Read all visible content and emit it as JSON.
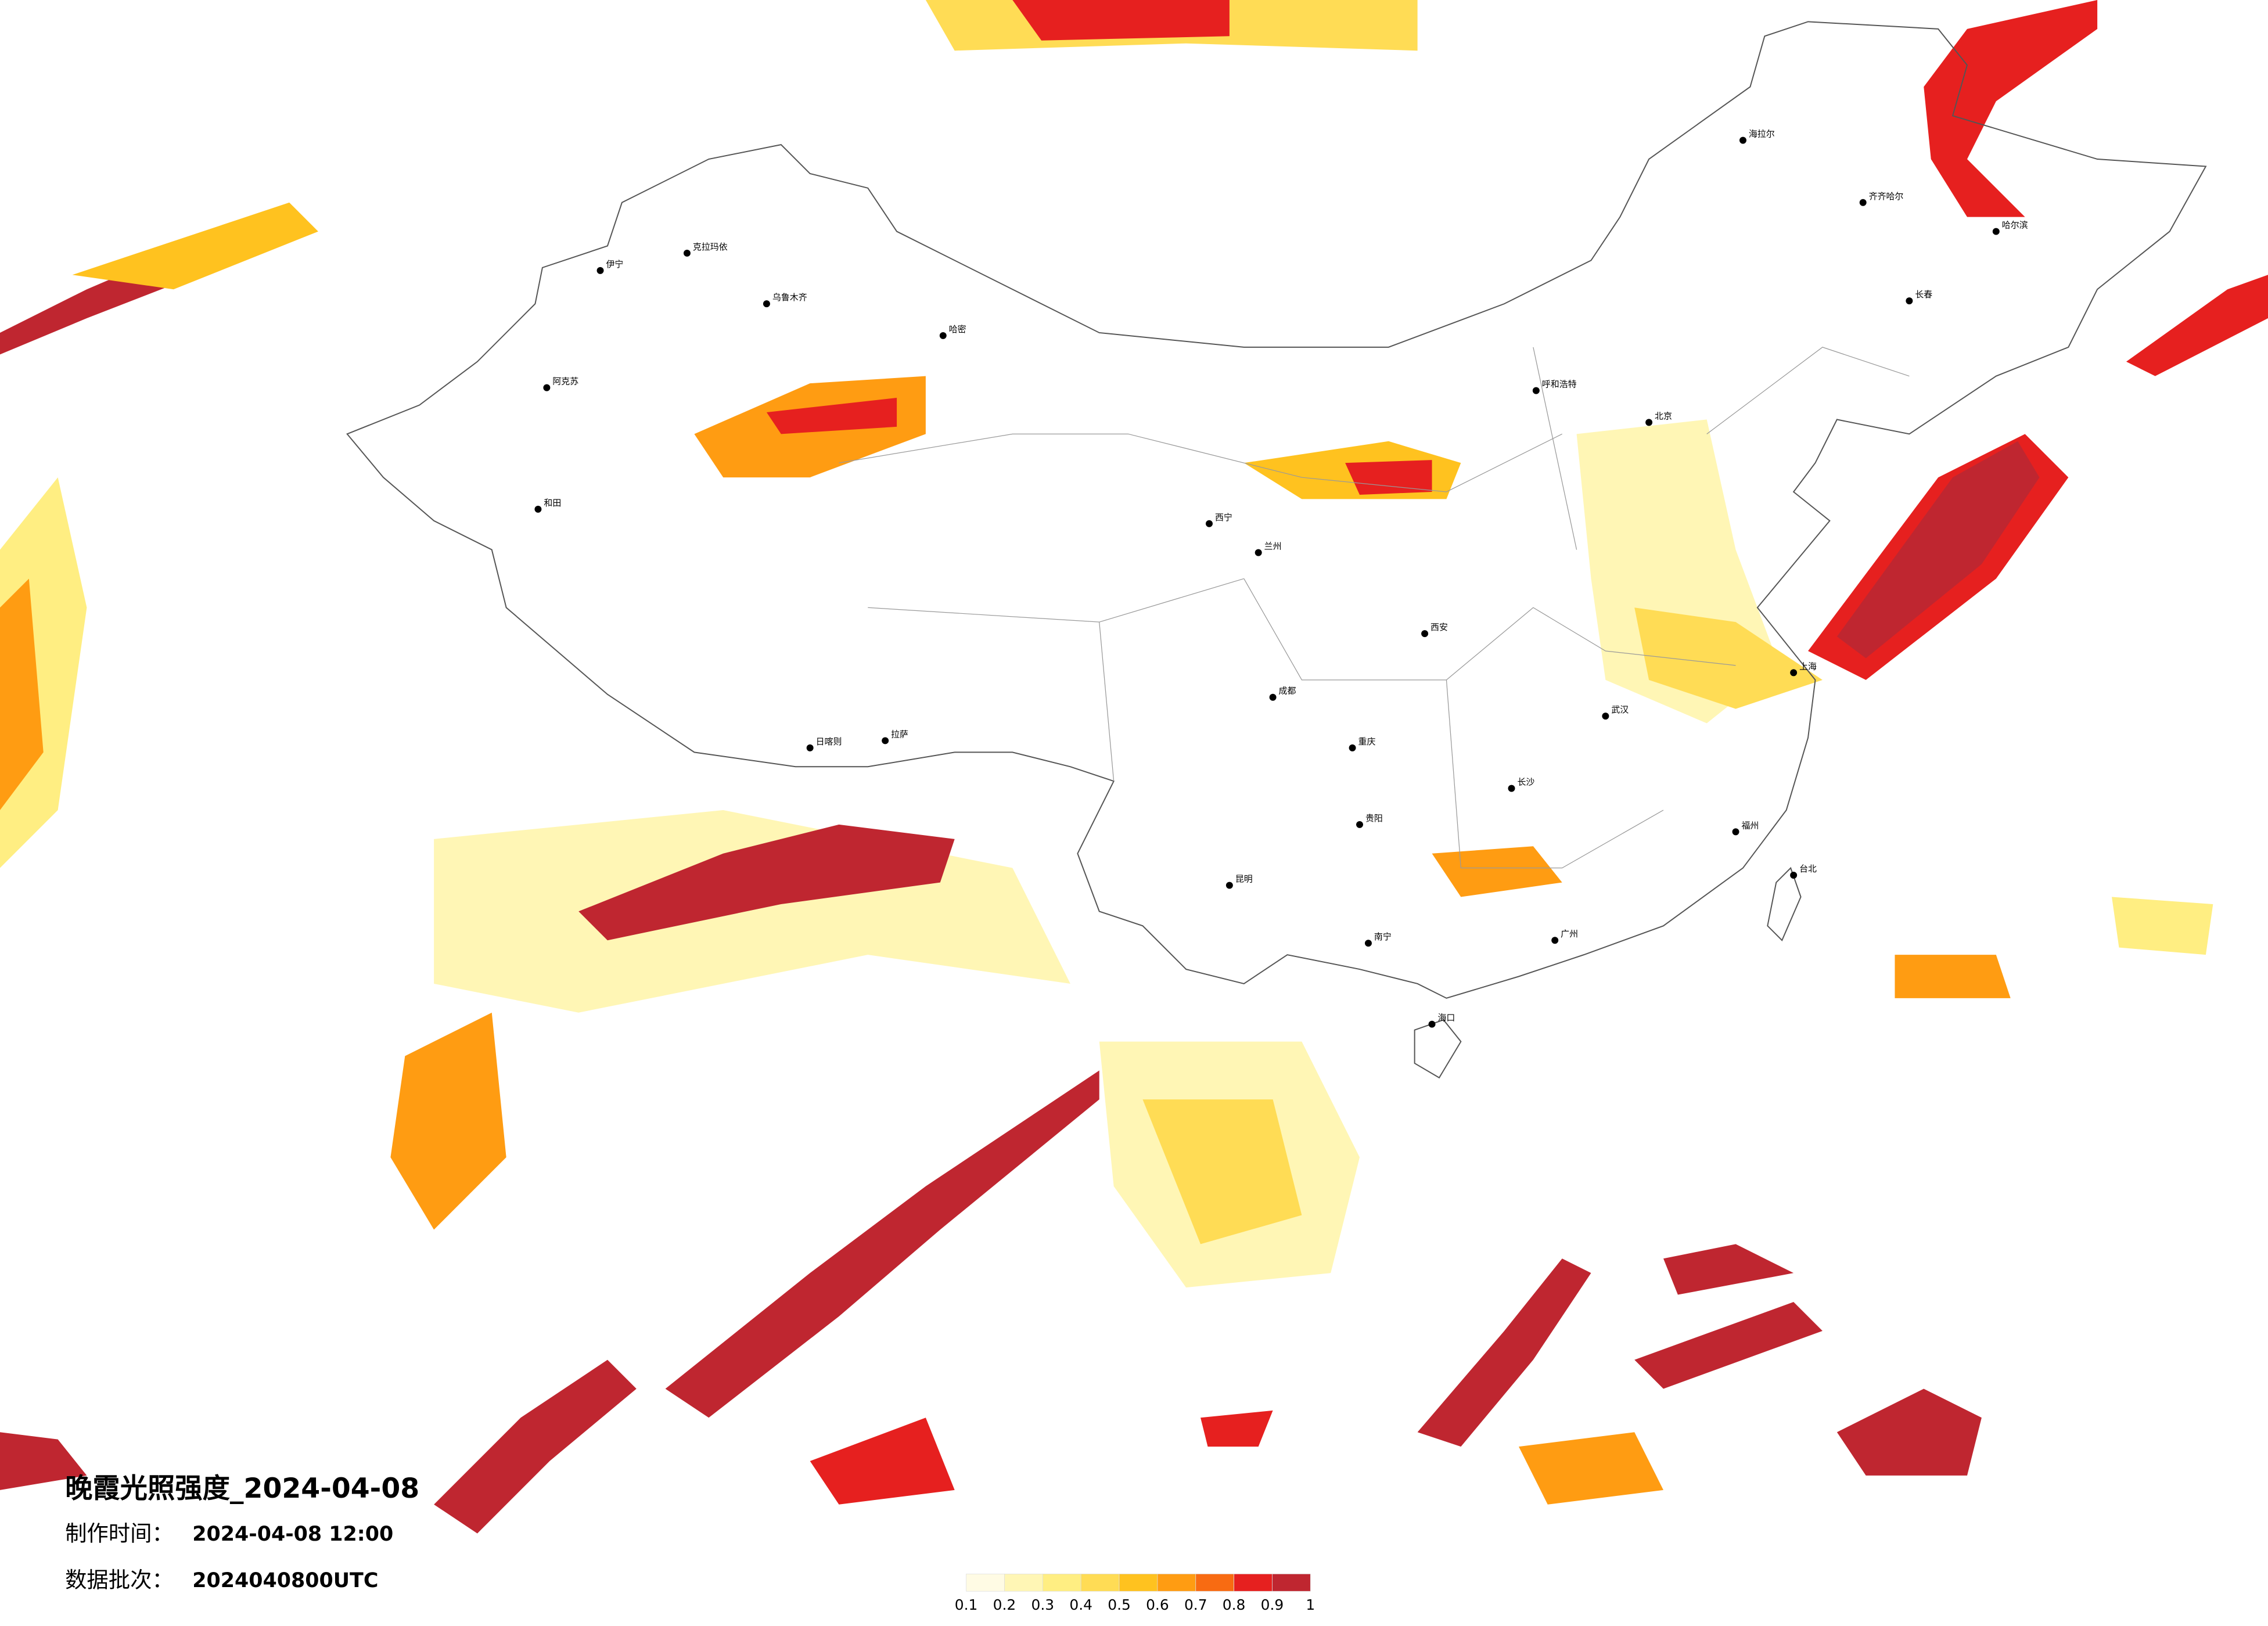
{
  "header": {
    "title": "晚霞光照强度_2024-04-08",
    "made_label": "制作时间：",
    "made_value": "2024-04-08 12:00",
    "batch_label": "数据批次：",
    "batch_value": "2024040800UTC"
  },
  "legend": {
    "ticks": [
      0.1,
      0.2,
      0.3,
      0.4,
      0.5,
      0.6,
      0.7,
      0.8,
      0.9,
      1
    ],
    "colors": [
      "#fffbe4",
      "#fff6b5",
      "#ffee82",
      "#ffdc55",
      "#ffc21f",
      "#ff9c12",
      "#f86b12",
      "#e6201f",
      "#bf2630"
    ]
  },
  "cities": [
    "克拉玛依",
    "乌鲁木齐",
    "伊宁",
    "阿克苏",
    "和田",
    "哈密",
    "拉萨",
    "日喀则",
    "西宁",
    "兰州",
    "成都",
    "重庆",
    "昆明",
    "南宁",
    "海口",
    "广州",
    "长沙",
    "武汉",
    "上海",
    "北京",
    "呼和浩特",
    "哈尔滨",
    "长春",
    "海拉尔",
    "台北",
    "齐齐哈尔",
    "福州",
    "西安",
    "贵阳"
  ]
}
